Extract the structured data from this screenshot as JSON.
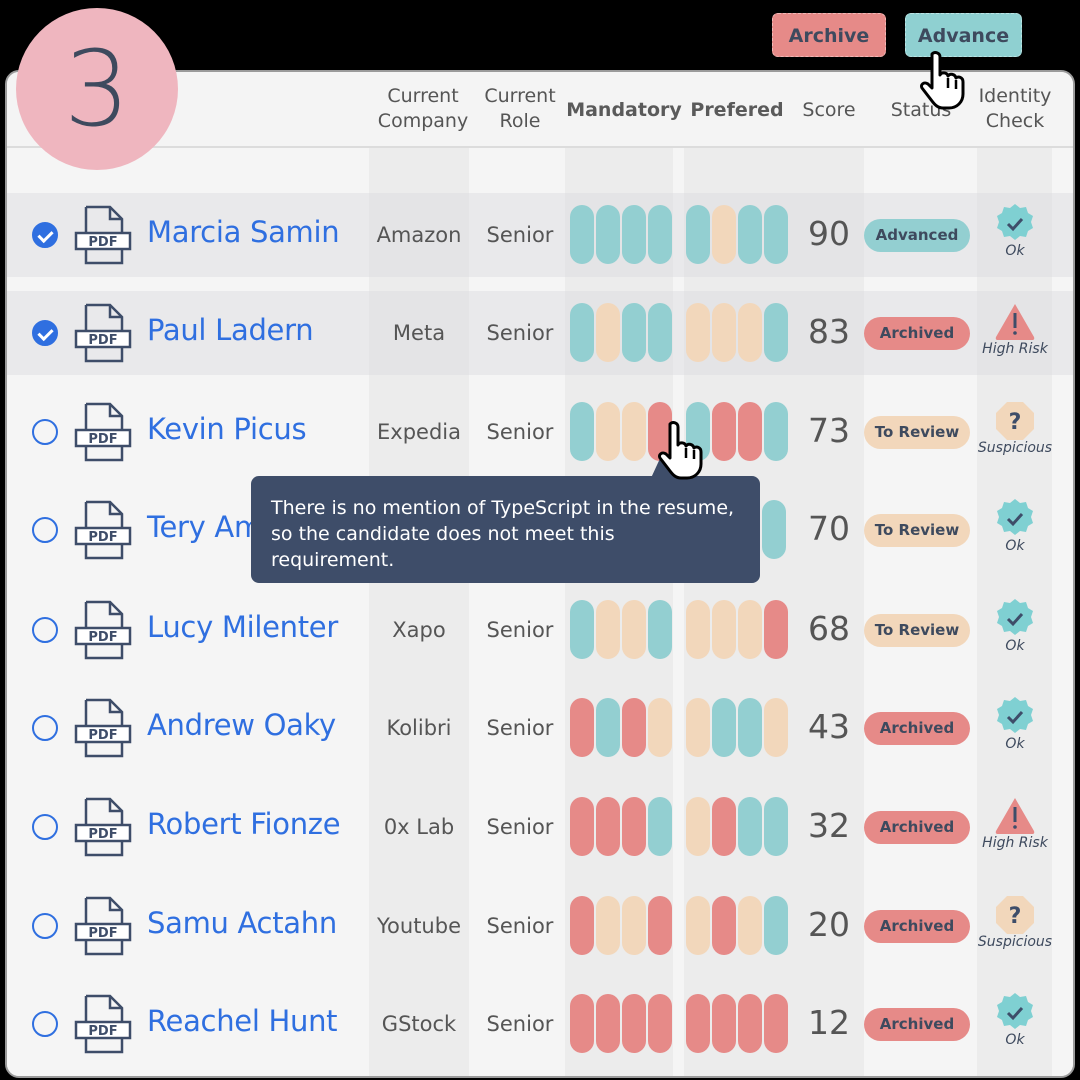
{
  "step_badge": "3",
  "toolbar": {
    "archive_label": "Archive",
    "advance_label": "Advance"
  },
  "colors": {
    "met": "#93cfd1",
    "partial": "#f2d7bb",
    "not_met": "#e68a88",
    "link_blue": "#2f6fe0",
    "tooltip_bg": "#3e4d69",
    "badge_pink": "#efb6bf"
  },
  "columns": {
    "company": [
      "Current",
      "Company"
    ],
    "role": [
      "Current",
      "Role"
    ],
    "mandatory": "Mandatory",
    "prefered": "Prefered",
    "score": "Score",
    "status": "Status",
    "identity": [
      "Identity",
      "Check"
    ]
  },
  "tooltip": {
    "text": "There is no mention of TypeScript in the resume, so the candidate does not meet this requirement."
  },
  "candidates": [
    {
      "selected": true,
      "name": "Marcia Samin",
      "company": "Amazon",
      "role": "Senior",
      "mandatory": [
        "met",
        "met",
        "met",
        "met"
      ],
      "prefered": [
        "met",
        "partial",
        "met",
        "met"
      ],
      "score": "90",
      "status": "Advanced",
      "identity": "Ok"
    },
    {
      "selected": true,
      "name": "Paul Ladern",
      "company": "Meta",
      "role": "Senior",
      "mandatory": [
        "met",
        "partial",
        "met",
        "met"
      ],
      "prefered": [
        "partial",
        "partial",
        "partial",
        "met"
      ],
      "score": "83",
      "status": "Archived",
      "identity": "High Risk"
    },
    {
      "selected": false,
      "name": "Kevin Picus",
      "company": "Expedia",
      "role": "Senior",
      "mandatory": [
        "met",
        "partial",
        "partial",
        "not_met"
      ],
      "prefered": [
        "met",
        "not_met",
        "not_met",
        "met"
      ],
      "score": "73",
      "status": "To Review",
      "identity": "Suspicious"
    },
    {
      "selected": false,
      "name": "Tery Am",
      "company": "",
      "role": "",
      "mandatory": [],
      "prefered": [
        "met"
      ],
      "score": "70",
      "status": "To Review",
      "identity": "Ok"
    },
    {
      "selected": false,
      "name": "Lucy Milenter",
      "company": "Xapo",
      "role": "Senior",
      "mandatory": [
        "met",
        "partial",
        "partial",
        "met"
      ],
      "prefered": [
        "partial",
        "partial",
        "partial",
        "not_met"
      ],
      "score": "68",
      "status": "To Review",
      "identity": "Ok"
    },
    {
      "selected": false,
      "name": "Andrew Oaky",
      "company": "Kolibri",
      "role": "Senior",
      "mandatory": [
        "not_met",
        "met",
        "not_met",
        "partial"
      ],
      "prefered": [
        "partial",
        "met",
        "met",
        "partial"
      ],
      "score": "43",
      "status": "Archived",
      "identity": "Ok"
    },
    {
      "selected": false,
      "name": "Robert Fionze",
      "company": "0x Lab",
      "role": "Senior",
      "mandatory": [
        "not_met",
        "not_met",
        "not_met",
        "met"
      ],
      "prefered": [
        "partial",
        "not_met",
        "met",
        "met"
      ],
      "score": "32",
      "status": "Archived",
      "identity": "High Risk"
    },
    {
      "selected": false,
      "name": "Samu Actahn",
      "company": "Youtube",
      "role": "Senior",
      "mandatory": [
        "not_met",
        "partial",
        "partial",
        "not_met"
      ],
      "prefered": [
        "partial",
        "not_met",
        "partial",
        "met"
      ],
      "score": "20",
      "status": "Archived",
      "identity": "Suspicious"
    },
    {
      "selected": false,
      "name": "Reachel Hunt",
      "company": "GStock",
      "role": "Senior",
      "mandatory": [
        "not_met",
        "not_met",
        "not_met",
        "not_met"
      ],
      "prefered": [
        "not_met",
        "not_met",
        "not_met",
        "not_met"
      ],
      "score": "12",
      "status": "Archived",
      "identity": "Ok"
    }
  ],
  "status_colors": {
    "Advanced": "#93cfd1",
    "Archived": "#e68a88",
    "To Review": "#f2d7bb"
  }
}
